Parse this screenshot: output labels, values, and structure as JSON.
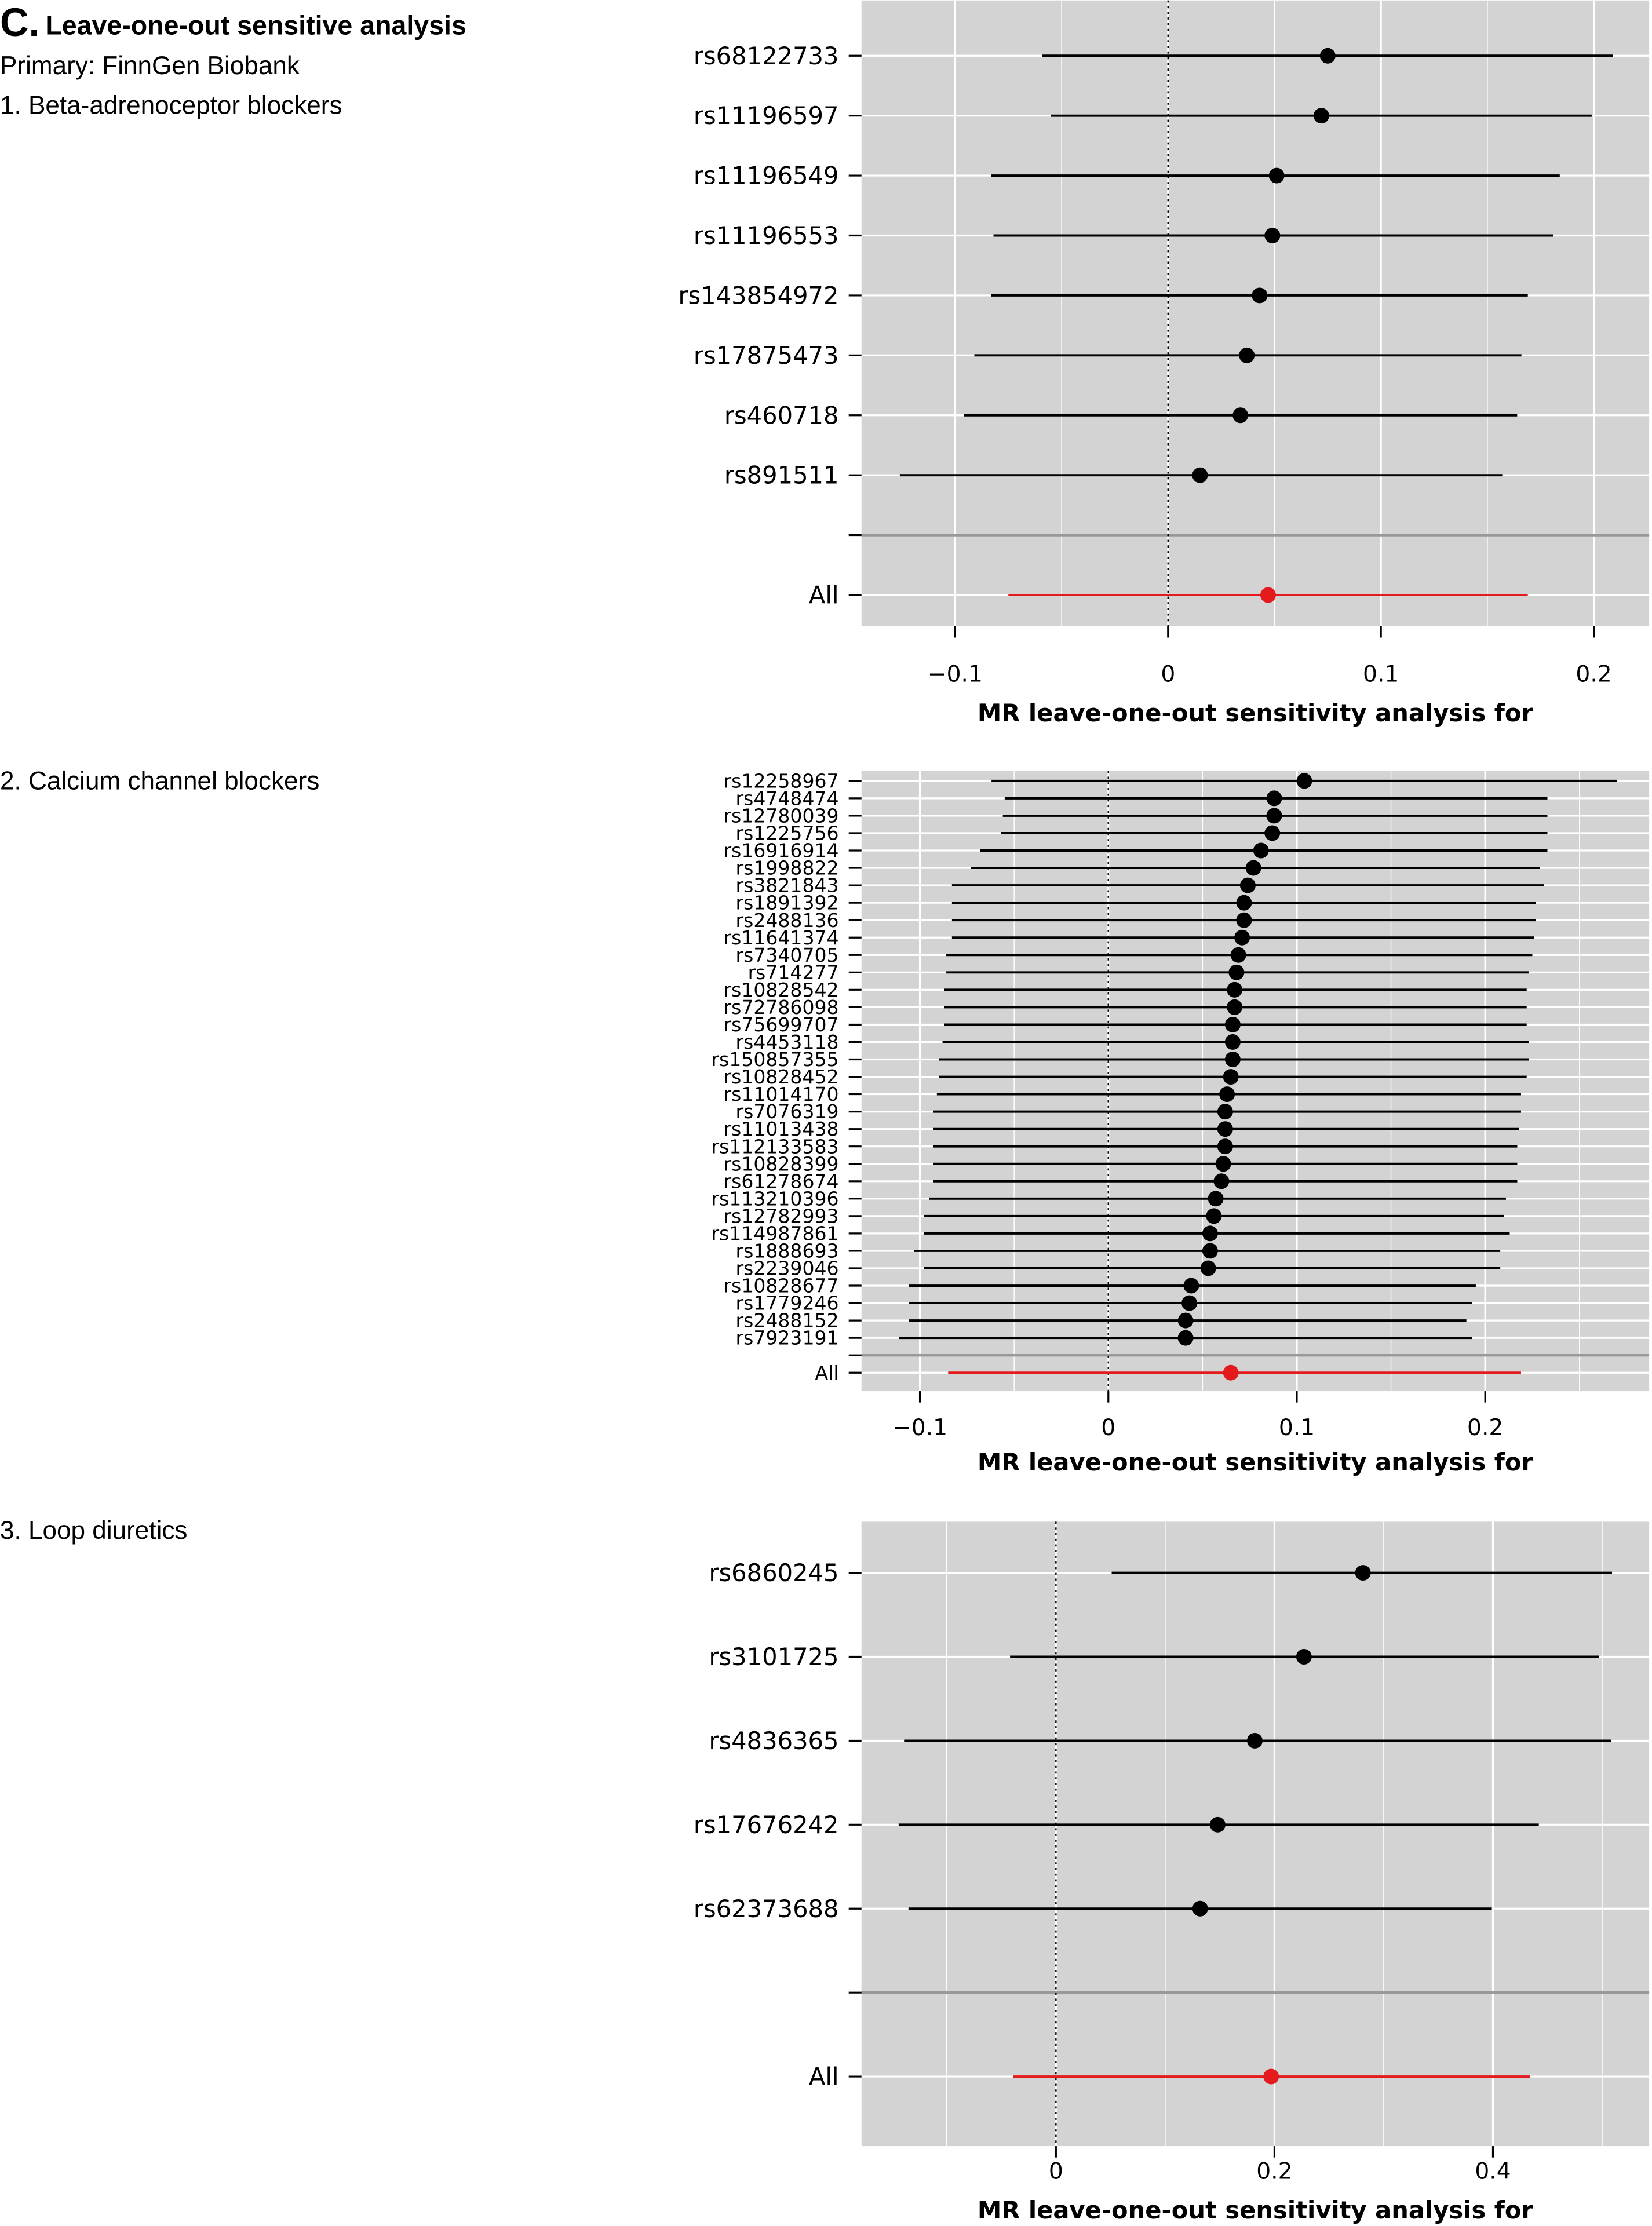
{
  "header": {
    "panel_letter": "C.",
    "title": "Leave-one-out sensitive analysis",
    "subtitle": "Primary: FinnGen Biobank",
    "section_1": "1. Beta-adrenoceptor blockers",
    "section_2": "2. Calcium channel blockers",
    "section_3": "3. Loop diuretics"
  },
  "colors": {
    "panel_bg": "#d3d3d3",
    "grid": "#ffffff",
    "separator": "#999999",
    "point": "#000000",
    "overall": "#e41a1c"
  },
  "chart_data": [
    {
      "type": "forest",
      "title": "1. Beta-adrenoceptor blockers",
      "xlabel": "MR leave-one-out sensitivity analysis for",
      "xlim": [
        -0.144,
        0.226
      ],
      "xticks": [
        -0.1,
        0,
        0.1,
        0.2
      ],
      "xtick_labels": [
        "−0.1",
        "0",
        "0.1",
        "0.2"
      ],
      "minor_ticks": [
        -0.05,
        0.05,
        0.15
      ],
      "grid": true,
      "reference_line": 0,
      "snps": [
        {
          "label": "rs68122733",
          "b": 0.075,
          "lo": -0.059,
          "hi": 0.209
        },
        {
          "label": "rs11196597",
          "b": 0.072,
          "lo": -0.055,
          "hi": 0.199
        },
        {
          "label": "rs11196549",
          "b": 0.051,
          "lo": -0.083,
          "hi": 0.184
        },
        {
          "label": "rs11196553",
          "b": 0.049,
          "lo": -0.082,
          "hi": 0.181
        },
        {
          "label": "rs143854972",
          "b": 0.043,
          "lo": -0.083,
          "hi": 0.169
        },
        {
          "label": "rs17875473",
          "b": 0.037,
          "lo": -0.091,
          "hi": 0.166
        },
        {
          "label": "rs460718",
          "b": 0.034,
          "lo": -0.096,
          "hi": 0.164
        },
        {
          "label": "rs891511",
          "b": 0.015,
          "lo": -0.126,
          "hi": 0.157
        }
      ],
      "overall": {
        "label": "All",
        "b": 0.047,
        "lo": -0.075,
        "hi": 0.169
      }
    },
    {
      "type": "forest",
      "title": "2. Calcium channel blockers",
      "xlabel": "MR leave-one-out sensitivity analysis for",
      "xlim": [
        -0.131,
        0.287
      ],
      "xticks": [
        -0.1,
        0,
        0.1,
        0.2
      ],
      "xtick_labels": [
        "−0.1",
        "0",
        "0.1",
        "0.2"
      ],
      "minor_ticks": [
        -0.05,
        0.05,
        0.15,
        0.25
      ],
      "grid": true,
      "reference_line": 0,
      "snps": [
        {
          "label": "rs12258967",
          "b": 0.104,
          "lo": -0.062,
          "hi": 0.27
        },
        {
          "label": "rs4748474",
          "b": 0.088,
          "lo": -0.055,
          "hi": 0.233
        },
        {
          "label": "rs12780039",
          "b": 0.088,
          "lo": -0.056,
          "hi": 0.233
        },
        {
          "label": "rs1225756",
          "b": 0.087,
          "lo": -0.057,
          "hi": 0.233
        },
        {
          "label": "rs16916914",
          "b": 0.081,
          "lo": -0.068,
          "hi": 0.233
        },
        {
          "label": "rs1998822",
          "b": 0.077,
          "lo": -0.073,
          "hi": 0.229
        },
        {
          "label": "rs3821843",
          "b": 0.074,
          "lo": -0.083,
          "hi": 0.231
        },
        {
          "label": "rs1891392",
          "b": 0.072,
          "lo": -0.083,
          "hi": 0.227
        },
        {
          "label": "rs2488136",
          "b": 0.072,
          "lo": -0.083,
          "hi": 0.227
        },
        {
          "label": "rs11641374",
          "b": 0.071,
          "lo": -0.083,
          "hi": 0.226
        },
        {
          "label": "rs7340705",
          "b": 0.069,
          "lo": -0.086,
          "hi": 0.225
        },
        {
          "label": "rs714277",
          "b": 0.068,
          "lo": -0.086,
          "hi": 0.223
        },
        {
          "label": "rs10828542",
          "b": 0.067,
          "lo": -0.087,
          "hi": 0.222
        },
        {
          "label": "rs72786098",
          "b": 0.067,
          "lo": -0.087,
          "hi": 0.222
        },
        {
          "label": "rs75699707",
          "b": 0.066,
          "lo": -0.087,
          "hi": 0.222
        },
        {
          "label": "rs4453118",
          "b": 0.066,
          "lo": -0.088,
          "hi": 0.223
        },
        {
          "label": "rs150857355",
          "b": 0.066,
          "lo": -0.09,
          "hi": 0.223
        },
        {
          "label": "rs10828452",
          "b": 0.065,
          "lo": -0.09,
          "hi": 0.222
        },
        {
          "label": "rs11014170",
          "b": 0.063,
          "lo": -0.091,
          "hi": 0.219
        },
        {
          "label": "rs7076319",
          "b": 0.062,
          "lo": -0.093,
          "hi": 0.219
        },
        {
          "label": "rs11013438",
          "b": 0.062,
          "lo": -0.093,
          "hi": 0.218
        },
        {
          "label": "rs112133583",
          "b": 0.062,
          "lo": -0.093,
          "hi": 0.217
        },
        {
          "label": "rs10828399",
          "b": 0.061,
          "lo": -0.093,
          "hi": 0.217
        },
        {
          "label": "rs61278674",
          "b": 0.06,
          "lo": -0.093,
          "hi": 0.217
        },
        {
          "label": "rs113210396",
          "b": 0.057,
          "lo": -0.095,
          "hi": 0.211
        },
        {
          "label": "rs12782993",
          "b": 0.056,
          "lo": -0.098,
          "hi": 0.21
        },
        {
          "label": "rs114987861",
          "b": 0.054,
          "lo": -0.098,
          "hi": 0.213
        },
        {
          "label": "rs1888693",
          "b": 0.054,
          "lo": -0.103,
          "hi": 0.208
        },
        {
          "label": "rs2239046",
          "b": 0.053,
          "lo": -0.098,
          "hi": 0.208
        },
        {
          "label": "rs10828677",
          "b": 0.044,
          "lo": -0.106,
          "hi": 0.195
        },
        {
          "label": "rs1779246",
          "b": 0.043,
          "lo": -0.106,
          "hi": 0.193
        },
        {
          "label": "rs2488152",
          "b": 0.041,
          "lo": -0.106,
          "hi": 0.19
        },
        {
          "label": "rs7923191",
          "b": 0.041,
          "lo": -0.111,
          "hi": 0.193
        }
      ],
      "overall": {
        "label": "All",
        "b": 0.065,
        "lo": -0.085,
        "hi": 0.219
      }
    },
    {
      "type": "forest",
      "title": "3. Loop diuretics",
      "xlabel": "MR leave-one-out sensitivity analysis for",
      "xlim": [
        -0.178,
        0.543
      ],
      "xticks": [
        0,
        0.2,
        0.4
      ],
      "xtick_labels": [
        "0",
        "0.2",
        "0.4"
      ],
      "minor_ticks": [
        -0.1,
        0.1,
        0.3,
        0.5
      ],
      "grid": true,
      "reference_line": 0,
      "snps": [
        {
          "label": "rs6860245",
          "b": 0.281,
          "lo": 0.051,
          "hi": 0.509
        },
        {
          "label": "rs3101725",
          "b": 0.227,
          "lo": -0.042,
          "hi": 0.497
        },
        {
          "label": "rs4836365",
          "b": 0.182,
          "lo": -0.139,
          "hi": 0.508
        },
        {
          "label": "rs17676242",
          "b": 0.148,
          "lo": -0.144,
          "hi": 0.442
        },
        {
          "label": "rs62373688",
          "b": 0.132,
          "lo": -0.135,
          "hi": 0.399
        }
      ],
      "overall": {
        "label": "All",
        "b": 0.197,
        "lo": -0.039,
        "hi": 0.434
      }
    }
  ]
}
